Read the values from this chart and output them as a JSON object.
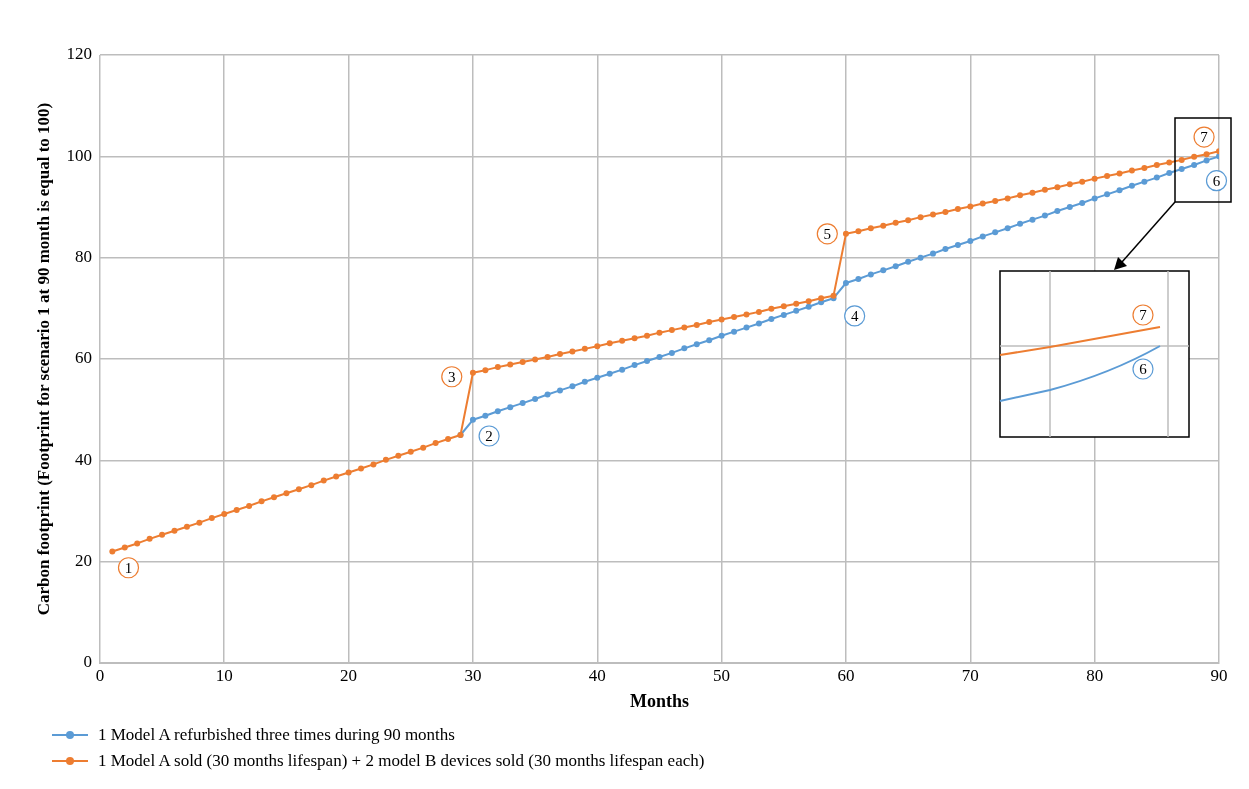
{
  "chart_data": {
    "type": "line",
    "xlabel": "Months",
    "ylabel": "Carbon footprint (Footprint for scenario 1 at 90 month is equal to 100)",
    "x": [
      1,
      2,
      3,
      4,
      5,
      6,
      7,
      8,
      9,
      10,
      11,
      12,
      13,
      14,
      15,
      16,
      17,
      18,
      19,
      20,
      21,
      22,
      23,
      24,
      25,
      26,
      27,
      28,
      29,
      30,
      31,
      32,
      33,
      34,
      35,
      36,
      37,
      38,
      39,
      40,
      41,
      42,
      43,
      44,
      45,
      46,
      47,
      48,
      49,
      50,
      51,
      52,
      53,
      54,
      55,
      56,
      57,
      58,
      59,
      60,
      61,
      62,
      63,
      64,
      65,
      66,
      67,
      68,
      69,
      70,
      71,
      72,
      73,
      74,
      75,
      76,
      77,
      78,
      79,
      80,
      81,
      82,
      83,
      84,
      85,
      86,
      87,
      88,
      89,
      90
    ],
    "series": [
      {
        "name": "1 Model A refurbished three times during 90 months",
        "color": "#5b9bd5",
        "values": [
          null,
          null,
          null,
          null,
          null,
          null,
          null,
          null,
          null,
          null,
          null,
          null,
          null,
          null,
          null,
          null,
          null,
          null,
          null,
          null,
          null,
          null,
          null,
          null,
          null,
          null,
          null,
          null,
          45.0,
          48.0,
          48.8,
          49.7,
          50.5,
          51.3,
          52.1,
          53.0,
          53.8,
          54.6,
          55.5,
          56.3,
          57.1,
          57.9,
          58.8,
          59.6,
          60.4,
          61.2,
          62.1,
          62.9,
          63.7,
          64.6,
          65.4,
          66.2,
          67.0,
          67.9,
          68.7,
          69.5,
          70.3,
          71.2,
          72.0,
          75.0,
          75.8,
          76.7,
          77.5,
          78.3,
          79.2,
          80.0,
          80.8,
          81.7,
          82.5,
          83.3,
          84.2,
          85.0,
          85.8,
          86.7,
          87.5,
          88.3,
          89.2,
          90.0,
          90.8,
          91.7,
          92.5,
          93.3,
          94.2,
          95.0,
          95.8,
          96.7,
          97.5,
          98.3,
          99.2,
          100.0
        ]
      },
      {
        "name": "1 Model A sold (30 months lifespan) + 2 model B devices sold (30 months lifespan each)",
        "color": "#ed7d31",
        "values": [
          22.0,
          22.8,
          23.6,
          24.5,
          25.3,
          26.1,
          26.9,
          27.7,
          28.6,
          29.4,
          30.2,
          31.0,
          31.9,
          32.7,
          33.5,
          34.3,
          35.1,
          36.0,
          36.8,
          37.6,
          38.4,
          39.2,
          40.1,
          40.9,
          41.7,
          42.5,
          43.4,
          44.2,
          45.0,
          57.3,
          57.8,
          58.4,
          58.9,
          59.4,
          59.9,
          60.4,
          61.0,
          61.5,
          62.0,
          62.5,
          63.1,
          63.6,
          64.1,
          64.6,
          65.2,
          65.7,
          66.2,
          66.7,
          67.3,
          67.8,
          68.3,
          68.8,
          69.3,
          69.9,
          70.4,
          70.9,
          71.4,
          72.0,
          72.5,
          84.7,
          85.2,
          85.8,
          86.3,
          86.9,
          87.4,
          88.0,
          88.5,
          89.0,
          89.6,
          90.1,
          90.7,
          91.2,
          91.7,
          92.3,
          92.8,
          93.4,
          93.9,
          94.5,
          95.0,
          95.6,
          96.1,
          96.6,
          97.2,
          97.7,
          98.3,
          98.8,
          99.3,
          99.9,
          100.4,
          101.0
        ]
      }
    ],
    "xlim": [
      0,
      90
    ],
    "xticks": [
      0,
      10,
      20,
      30,
      40,
      50,
      60,
      70,
      80,
      90
    ],
    "ylim": [
      0,
      120
    ],
    "yticks": [
      0,
      20,
      40,
      60,
      80,
      100,
      120
    ],
    "grid": true,
    "legend": "bottom",
    "marker": "circle",
    "line_style": "solid",
    "annotations": [
      {
        "text": "1",
        "x": 2.3,
        "y": 18.8
      },
      {
        "text": "2",
        "x": 31.3,
        "y": 44.8
      },
      {
        "text": "3",
        "x": 28.3,
        "y": 56.5
      },
      {
        "text": "4",
        "x": 60.7,
        "y": 68.5
      },
      {
        "text": "5",
        "x": 58.5,
        "y": 84.7
      },
      {
        "text": "6",
        "x": 89.8,
        "y": 95.2
      },
      {
        "text": "7",
        "x": 88.8,
        "y": 103.8
      }
    ]
  }
}
